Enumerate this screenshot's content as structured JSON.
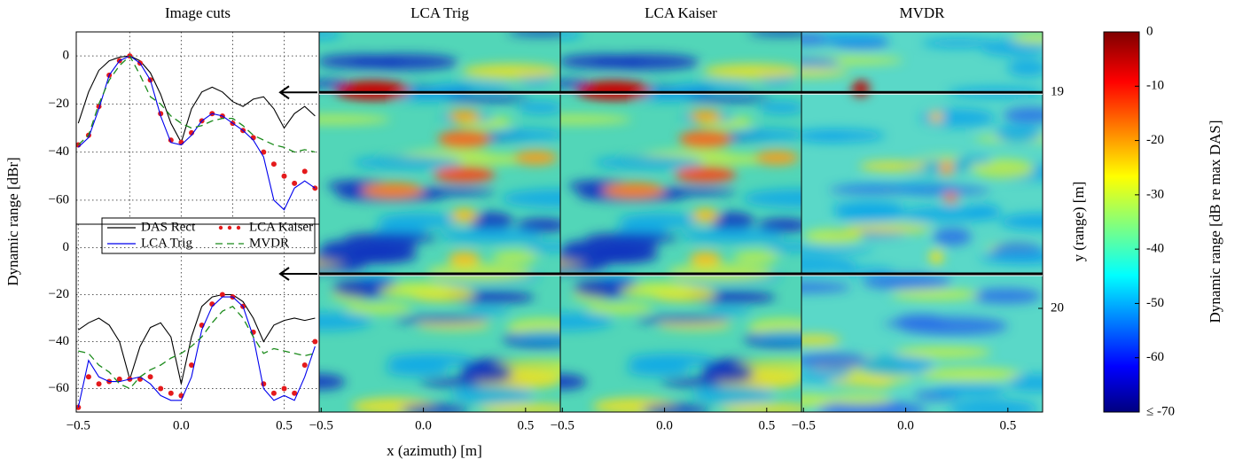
{
  "chart_data": [
    {
      "type": "line",
      "title": "Image cuts",
      "ylabel": "Dynamic range [dBr]",
      "x": [
        -0.5,
        -0.45,
        -0.4,
        -0.35,
        -0.3,
        -0.25,
        -0.2,
        -0.15,
        -0.1,
        -0.05,
        0,
        0.05,
        0.1,
        0.15,
        0.2,
        0.25,
        0.3,
        0.35,
        0.4,
        0.45,
        0.5,
        0.55,
        0.6,
        0.65
      ],
      "xlim": [
        -0.51,
        0.67
      ],
      "ylim": [
        -70,
        10
      ],
      "xticks": [
        -0.25,
        0,
        0.25,
        0.5
      ],
      "xticklabels": false,
      "yticks": [
        0,
        {
          "value": -20,
          "label": "−20"
        },
        {
          "value": -40,
          "label": "−40"
        },
        {
          "value": -60,
          "label": "−60"
        }
      ],
      "grid": true,
      "legend": "bottom",
      "series": [
        {
          "name": "DAS Rect",
          "color": "#000000",
          "style": "line",
          "values": [
            -28,
            -15,
            -6,
            -2,
            -0.5,
            0,
            -2,
            -7,
            -16,
            -28,
            -36,
            -22,
            -15,
            -13,
            -15,
            -19,
            -21,
            -18,
            -17,
            -22,
            -30,
            -24,
            -21,
            -25
          ]
        },
        {
          "name": "LCA Kaiser",
          "color": "#e41a1c",
          "style": "dots",
          "values": [
            -37,
            -33,
            -21,
            -8,
            -2,
            0,
            -3,
            -10,
            -24,
            -35,
            -36,
            -32,
            -27,
            -24,
            -25,
            -28,
            -31,
            -34,
            -40,
            -45,
            -50,
            -53,
            -48,
            -55
          ]
        },
        {
          "name": "LCA Trig",
          "color": "#0000ee",
          "style": "line",
          "values": [
            -38,
            -34,
            -22,
            -8,
            -2,
            0,
            -3,
            -10,
            -25,
            -36,
            -37,
            -33,
            -27,
            -24,
            -25,
            -28,
            -31,
            -35,
            -42,
            -60,
            -64,
            -55,
            -52,
            -55
          ]
        },
        {
          "name": "MVDR",
          "color": "#1a8a1a",
          "style": "dashed",
          "values": [
            -37,
            -33,
            -20,
            -10,
            -4,
            0,
            -8,
            -17,
            -20,
            -25,
            -28,
            -30,
            -29,
            -27,
            -26,
            -26,
            -29,
            -33,
            -35,
            -37,
            -38,
            -40,
            -39,
            -40
          ]
        }
      ]
    },
    {
      "type": "line",
      "x": [
        -0.5,
        -0.45,
        -0.4,
        -0.35,
        -0.3,
        -0.25,
        -0.2,
        -0.15,
        -0.1,
        -0.05,
        0,
        0.05,
        0.1,
        0.15,
        0.2,
        0.25,
        0.3,
        0.35,
        0.4,
        0.45,
        0.5,
        0.55,
        0.6,
        0.65
      ],
      "xlim": [
        -0.51,
        0.67
      ],
      "ylim": [
        -70,
        10
      ],
      "xticks": [
        {
          "value": -0.5,
          "label": "−0.5"
        },
        {
          "value": 0,
          "label": "0.0"
        },
        {
          "value": 0.5,
          "label": "0.5"
        }
      ],
      "yticks": [
        0,
        {
          "value": -20,
          "label": "−20"
        },
        {
          "value": -40,
          "label": "−40"
        },
        {
          "value": -60,
          "label": "−60"
        }
      ],
      "grid": true,
      "series": [
        {
          "name": "DAS Rect",
          "color": "#000000",
          "style": "line",
          "values": [
            -35,
            -32,
            -30,
            -33,
            -40,
            -56,
            -42,
            -34,
            -32,
            -38,
            -58,
            -38,
            -25,
            -21,
            -20,
            -20,
            -23,
            -30,
            -40,
            -33,
            -31,
            -30,
            -31,
            -30
          ]
        },
        {
          "name": "LCA Kaiser",
          "color": "#e41a1c",
          "style": "dots",
          "values": [
            -68,
            -55,
            -58,
            -57,
            -56,
            -56,
            -56,
            -55,
            -60,
            -62,
            -63,
            -50,
            -33,
            -24,
            -20,
            -21,
            -25,
            -36,
            -58,
            -62,
            -60,
            -62,
            -50,
            -40
          ]
        },
        {
          "name": "LCA Trig",
          "color": "#0000ee",
          "style": "line",
          "values": [
            -68,
            -48,
            -55,
            -57,
            -57,
            -56,
            -55,
            -58,
            -63,
            -65,
            -65,
            -55,
            -35,
            -25,
            -21,
            -21,
            -25,
            -38,
            -60,
            -65,
            -63,
            -65,
            -55,
            -42
          ]
        },
        {
          "name": "MVDR",
          "color": "#1a8a1a",
          "style": "dashed",
          "values": [
            -44,
            -45,
            -50,
            -53,
            -58,
            -60,
            -55,
            -52,
            -50,
            -47,
            -45,
            -42,
            -38,
            -32,
            -27,
            -25,
            -30,
            -38,
            -45,
            -43,
            -44,
            -45,
            -46,
            -45
          ]
        }
      ]
    },
    {
      "type": "heatmap",
      "title": "LCA Trig",
      "xlabel": "x (azimuth) [m]",
      "xlim": [
        -0.51,
        0.67
      ],
      "xticks": [
        {
          "value": -0.5,
          "label": "−0.5"
        },
        {
          "value": 0,
          "label": "0.0"
        },
        {
          "value": 0.5,
          "label": "0.5"
        }
      ]
    },
    {
      "type": "heatmap",
      "title": "LCA Kaiser",
      "xlim": [
        -0.51,
        0.67
      ],
      "xticks": [
        {
          "value": -0.5,
          "label": "−0.5"
        },
        {
          "value": 0,
          "label": "0.0"
        },
        {
          "value": 0.5,
          "label": "0.5"
        }
      ]
    },
    {
      "type": "heatmap",
      "title": "MVDR",
      "xlim": [
        -0.51,
        0.67
      ],
      "xticks": [
        {
          "value": -0.5,
          "label": "−0.5"
        },
        {
          "value": 0,
          "label": "0.0"
        },
        {
          "value": 0.5,
          "label": "0.5"
        }
      ],
      "y2label": "y (range) [m]",
      "y2lim": [
        20.48,
        18.72
      ],
      "y2ticks": [
        19,
        20
      ],
      "cuts": [
        19,
        19.84
      ]
    },
    {
      "type": "colorbar",
      "label": "Dynamic range [dB re max DAS]",
      "ylim": [
        -70,
        0
      ],
      "colormap": "jet",
      "yticks": [
        0,
        -10,
        -20,
        -30,
        -40,
        -50,
        -60,
        {
          "value": -70,
          "label": "≤ -70"
        }
      ]
    }
  ]
}
